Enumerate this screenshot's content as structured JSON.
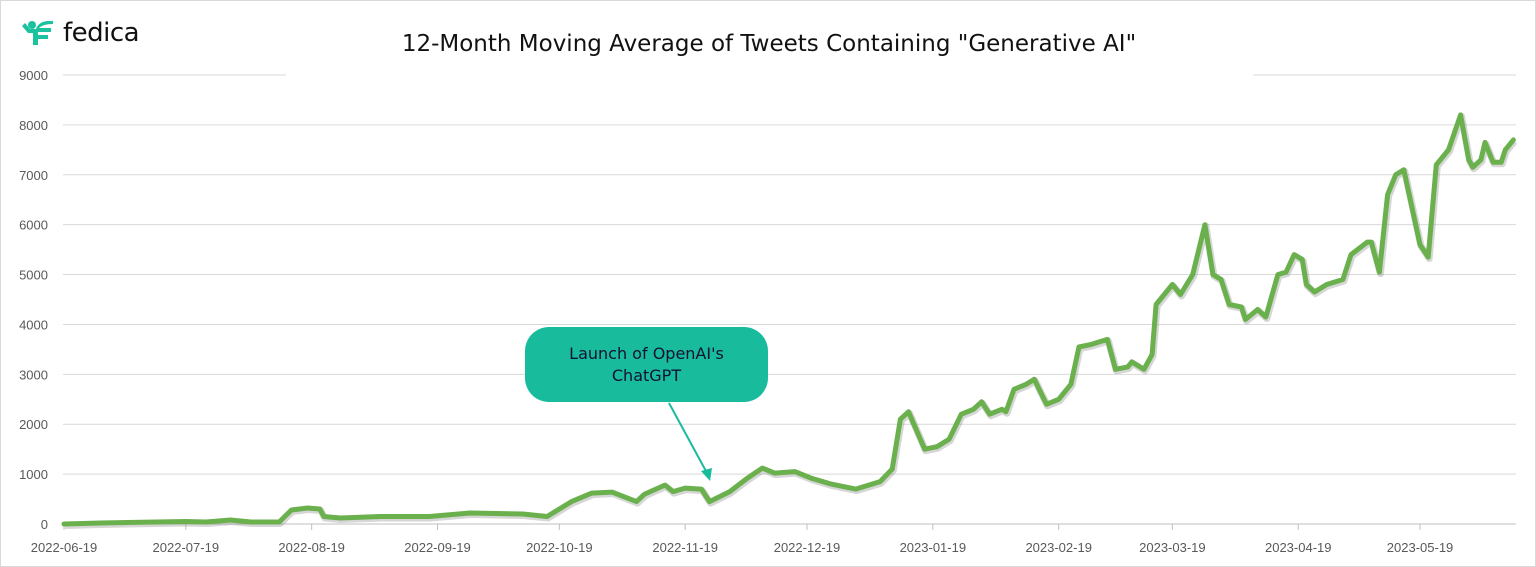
{
  "brand": {
    "name": "fedica",
    "logo_color": "#1cc29f"
  },
  "chart_data": {
    "type": "line",
    "title": "12-Month Moving Average of Tweets Containing \"Generative AI\"",
    "xlabel": "",
    "ylabel": "",
    "ylim": [
      0,
      9000
    ],
    "xlim": [
      "2022-06-19",
      "2023-06-11"
    ],
    "grid": true,
    "line_color": "#6ab04c",
    "y_ticks": [
      "0",
      "1000",
      "2000",
      "3000",
      "4000",
      "5000",
      "6000",
      "7000",
      "8000",
      "9000"
    ],
    "x_ticks": [
      "2022-06-19",
      "2022-07-19",
      "2022-08-19",
      "2022-09-19",
      "2022-10-19",
      "2022-11-19",
      "2022-12-19",
      "2023-01-19",
      "2023-02-19",
      "2023-03-19",
      "2023-04-19",
      "2023-05-19"
    ],
    "points": [
      [
        "2022-06-19",
        0
      ],
      [
        "2022-06-28",
        20
      ],
      [
        "2022-07-19",
        50
      ],
      [
        "2022-07-24",
        40
      ],
      [
        "2022-07-30",
        80
      ],
      [
        "2022-08-04",
        40
      ],
      [
        "2022-08-11",
        40
      ],
      [
        "2022-08-14",
        280
      ],
      [
        "2022-08-18",
        320
      ],
      [
        "2022-08-21",
        300
      ],
      [
        "2022-08-22",
        150
      ],
      [
        "2022-08-26",
        120
      ],
      [
        "2022-09-05",
        150
      ],
      [
        "2022-09-17",
        150
      ],
      [
        "2022-09-27",
        220
      ],
      [
        "2022-10-10",
        200
      ],
      [
        "2022-10-16",
        150
      ],
      [
        "2022-10-22",
        450
      ],
      [
        "2022-10-27",
        620
      ],
      [
        "2022-11-01",
        640
      ],
      [
        "2022-11-07",
        450
      ],
      [
        "2022-11-09",
        600
      ],
      [
        "2022-11-14",
        780
      ],
      [
        "2022-11-16",
        650
      ],
      [
        "2022-11-19",
        720
      ],
      [
        "2022-11-23",
        700
      ],
      [
        "2022-11-25",
        450
      ],
      [
        "2022-11-30",
        650
      ],
      [
        "2022-12-04",
        900
      ],
      [
        "2022-12-08",
        1120
      ],
      [
        "2022-12-11",
        1020
      ],
      [
        "2022-12-16",
        1050
      ],
      [
        "2022-12-20",
        920
      ],
      [
        "2022-12-25",
        800
      ],
      [
        "2022-12-31",
        700
      ],
      [
        "2023-01-06",
        850
      ],
      [
        "2023-01-09",
        1100
      ],
      [
        "2023-01-11",
        2100
      ],
      [
        "2023-01-13",
        2250
      ],
      [
        "2023-01-17",
        1500
      ],
      [
        "2023-01-20",
        1550
      ],
      [
        "2023-01-23",
        1700
      ],
      [
        "2023-01-26",
        2200
      ],
      [
        "2023-01-29",
        2300
      ],
      [
        "2023-01-31",
        2450
      ],
      [
        "2023-02-02",
        2200
      ],
      [
        "2023-02-05",
        2300
      ],
      [
        "2023-02-06",
        2250
      ],
      [
        "2023-02-08",
        2700
      ],
      [
        "2023-02-11",
        2800
      ],
      [
        "2023-02-13",
        2900
      ],
      [
        "2023-02-16",
        2400
      ],
      [
        "2023-02-19",
        2500
      ],
      [
        "2023-02-22",
        2800
      ],
      [
        "2023-02-24",
        3550
      ],
      [
        "2023-02-27",
        3600
      ],
      [
        "2023-03-03",
        3700
      ],
      [
        "2023-03-05",
        3100
      ],
      [
        "2023-03-08",
        3150
      ],
      [
        "2023-03-09",
        3250
      ],
      [
        "2023-03-12",
        3100
      ],
      [
        "2023-03-14",
        3400
      ],
      [
        "2023-03-15",
        4400
      ],
      [
        "2023-03-19",
        4800
      ],
      [
        "2023-03-21",
        4600
      ],
      [
        "2023-03-24",
        5000
      ],
      [
        "2023-03-27",
        6000
      ],
      [
        "2023-03-29",
        5000
      ],
      [
        "2023-03-31",
        4900
      ],
      [
        "2023-04-02",
        4400
      ],
      [
        "2023-04-05",
        4350
      ],
      [
        "2023-04-06",
        4100
      ],
      [
        "2023-04-09",
        4300
      ],
      [
        "2023-04-11",
        4150
      ],
      [
        "2023-04-14",
        5000
      ],
      [
        "2023-04-16",
        5050
      ],
      [
        "2023-04-18",
        5400
      ],
      [
        "2023-04-20",
        5300
      ],
      [
        "2023-04-21",
        4800
      ],
      [
        "2023-04-23",
        4650
      ],
      [
        "2023-04-26",
        4800
      ],
      [
        "2023-04-30",
        4900
      ],
      [
        "2023-05-02",
        5400
      ],
      [
        "2023-05-06",
        5650
      ],
      [
        "2023-05-07",
        5650
      ],
      [
        "2023-05-09",
        5050
      ],
      [
        "2023-05-11",
        6600
      ],
      [
        "2023-05-13",
        7000
      ],
      [
        "2023-05-15",
        7100
      ],
      [
        "2023-05-19",
        5600
      ],
      [
        "2023-05-21",
        5350
      ],
      [
        "2023-05-23",
        7200
      ],
      [
        "2023-05-26",
        7500
      ],
      [
        "2023-05-29",
        8200
      ],
      [
        "2023-05-31",
        7300
      ],
      [
        "2023-06-01",
        7150
      ],
      [
        "2023-06-03",
        7300
      ],
      [
        "2023-06-04",
        7650
      ],
      [
        "2023-06-06",
        7250
      ],
      [
        "2023-06-08",
        7250
      ],
      [
        "2023-06-09",
        7500
      ],
      [
        "2023-06-11",
        7700
      ]
    ],
    "annotations": [
      {
        "text": "Launch of OpenAI's\nChatGPT",
        "date": "2022-11-25",
        "color": "#18bc9c"
      }
    ]
  }
}
